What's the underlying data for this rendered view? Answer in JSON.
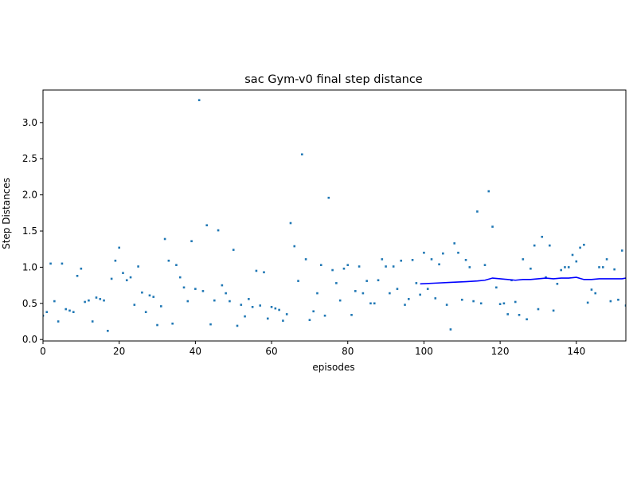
{
  "chart_data": {
    "type": "scatter",
    "title": "sac Gym-v0 final step distance",
    "xlabel": "episodes",
    "ylabel": "Step Distances",
    "xlim": [
      0,
      153
    ],
    "ylim": [
      -0.02,
      3.45
    ],
    "xticks": [
      0,
      20,
      40,
      60,
      80,
      100,
      120,
      140
    ],
    "yticks": [
      0.0,
      0.5,
      1.0,
      1.5,
      2.0,
      2.5,
      3.0
    ],
    "xtick_labels": [
      "0",
      "20",
      "40",
      "60",
      "80",
      "100",
      "120",
      "140"
    ],
    "ytick_labels": [
      "0.0",
      "0.5",
      "1.0",
      "1.5",
      "2.0",
      "2.5",
      "3.0"
    ],
    "grid": false,
    "legend": "none",
    "colors": {
      "points": "#1f77b4",
      "moving_average": "#0000ff"
    },
    "series": [
      {
        "type": "scatter",
        "x": [
          0,
          1,
          2,
          3,
          4,
          5,
          6,
          7,
          8,
          9,
          10,
          11,
          12,
          13,
          14,
          15,
          16,
          17,
          18,
          19,
          20,
          21,
          22,
          23,
          24,
          25,
          26,
          27,
          28,
          29,
          30,
          31,
          32,
          33,
          34,
          35,
          36,
          37,
          38,
          39,
          40,
          41,
          42,
          43,
          44,
          45,
          46,
          47,
          48,
          49,
          50,
          51,
          52,
          53,
          54,
          55,
          56,
          57,
          58,
          59,
          60,
          61,
          62,
          63,
          64,
          65,
          66,
          67,
          68,
          69,
          70,
          71,
          72,
          73,
          74,
          75,
          76,
          77,
          78,
          79,
          80,
          81,
          82,
          83,
          84,
          85,
          86,
          87,
          88,
          89,
          90,
          91,
          92,
          93,
          94,
          95,
          96,
          97,
          98,
          99,
          100,
          101,
          102,
          103,
          104,
          105,
          106,
          107,
          108,
          109,
          110,
          111,
          112,
          113,
          114,
          115,
          116,
          117,
          118,
          119,
          120,
          121,
          122,
          123,
          124,
          125,
          126,
          127,
          128,
          129,
          130,
          131,
          132,
          133,
          134,
          135,
          136,
          137,
          138,
          139,
          140,
          141,
          142,
          143,
          144,
          145,
          146,
          147,
          148,
          149,
          150,
          151,
          152,
          153
        ],
        "y": [
          0.33,
          0.38,
          1.05,
          0.53,
          0.25,
          1.05,
          0.42,
          0.4,
          0.38,
          0.88,
          0.98,
          0.52,
          0.54,
          0.25,
          0.58,
          0.56,
          0.54,
          0.12,
          0.84,
          1.09,
          1.27,
          0.92,
          0.82,
          0.86,
          0.48,
          1.01,
          0.65,
          0.38,
          0.61,
          0.59,
          0.2,
          0.46,
          1.39,
          1.09,
          0.22,
          1.03,
          0.86,
          0.72,
          0.53,
          1.36,
          0.7,
          3.31,
          0.67,
          1.58,
          0.21,
          0.54,
          1.51,
          0.75,
          0.64,
          0.53,
          1.24,
          0.19,
          0.48,
          0.32,
          0.56,
          0.45,
          0.95,
          0.47,
          0.93,
          0.29,
          0.45,
          0.43,
          0.41,
          0.26,
          0.35,
          1.61,
          1.29,
          0.81,
          2.56,
          1.11,
          0.27,
          0.39,
          0.64,
          1.03,
          0.33,
          1.96,
          0.96,
          0.78,
          0.54,
          0.98,
          1.03,
          0.34,
          0.67,
          1.01,
          0.64,
          0.81,
          0.5,
          0.5,
          0.82,
          1.11,
          1.01,
          0.64,
          1.01,
          0.7,
          1.09,
          0.48,
          0.56,
          1.1,
          0.78,
          0.62,
          1.2,
          0.7,
          1.11,
          0.57,
          1.04,
          1.19,
          0.48,
          0.14,
          1.33,
          1.2,
          0.55,
          1.1,
          1.0,
          0.53,
          1.77,
          0.5,
          1.03,
          2.05,
          1.56,
          0.72,
          0.49,
          0.5,
          0.35,
          0.82,
          0.52,
          0.34,
          1.11,
          0.28,
          0.98,
          1.3,
          0.42,
          1.42,
          0.86,
          1.3,
          0.4,
          0.77,
          0.96,
          1.0,
          1.0,
          1.17,
          1.08,
          1.27,
          1.31,
          0.51,
          0.69,
          0.64,
          1.0,
          1.0,
          1.11,
          0.53,
          0.97,
          0.55,
          1.23,
          0.47
        ]
      },
      {
        "type": "line",
        "x": [
          99,
          103,
          107,
          111,
          114,
          116,
          118,
          120,
          122,
          124,
          126,
          128,
          130,
          132,
          134,
          136,
          138,
          140,
          142,
          144,
          146,
          148,
          150,
          152,
          153
        ],
        "y": [
          0.77,
          0.78,
          0.79,
          0.8,
          0.81,
          0.82,
          0.85,
          0.84,
          0.83,
          0.82,
          0.83,
          0.83,
          0.84,
          0.85,
          0.84,
          0.85,
          0.85,
          0.86,
          0.83,
          0.83,
          0.84,
          0.84,
          0.84,
          0.84,
          0.85
        ]
      }
    ]
  }
}
